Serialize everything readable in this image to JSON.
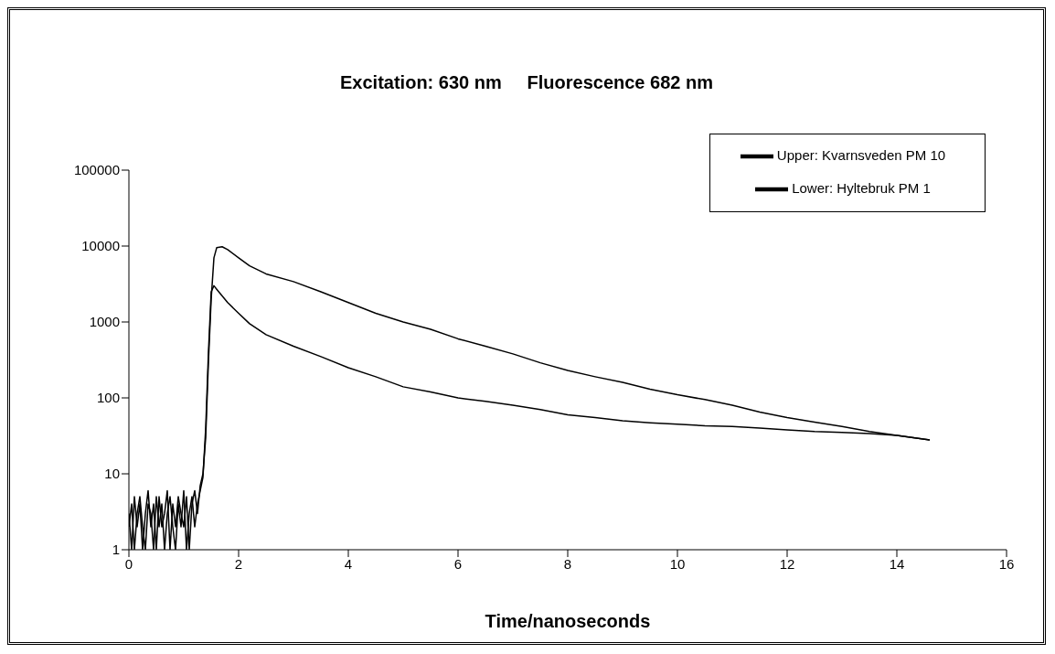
{
  "chart_data": {
    "type": "line",
    "title": "Excitation: 630 nm     Fluorescence 682 nm",
    "xlabel": "Time/nanoseconds",
    "xlim": [
      0,
      16
    ],
    "xticks": [
      0,
      2,
      4,
      6,
      8,
      10,
      12,
      14,
      16
    ],
    "ylim": [
      1,
      100000
    ],
    "yticks": [
      1,
      10,
      100,
      1000,
      10000,
      100000
    ],
    "log": "y",
    "grid": false,
    "legend": "top right",
    "marker": "none",
    "line_style": "solid",
    "series": [
      {
        "name": "Upper: Kvarnsveden PM 10",
        "color": "#000000",
        "x": [
          0,
          0.05,
          0.1,
          0.15,
          0.2,
          0.25,
          0.3,
          0.35,
          0.4,
          0.45,
          0.5,
          0.55,
          0.6,
          0.65,
          0.7,
          0.75,
          0.8,
          0.85,
          0.9,
          0.95,
          1,
          1.05,
          1.1,
          1.15,
          1.2,
          1.25,
          1.3,
          1.35,
          1.4,
          1.45,
          1.5,
          1.55,
          1.6,
          1.7,
          1.8,
          2,
          2.2,
          2.5,
          3,
          3.5,
          4,
          4.5,
          5,
          5.5,
          6,
          6.5,
          7,
          7.5,
          8,
          8.5,
          9,
          9.5,
          10,
          10.5,
          11,
          11.5,
          12,
          12.5,
          13,
          13.5,
          14,
          14.3,
          14.6
        ],
        "values": [
          3,
          1,
          5,
          2,
          4,
          1,
          3,
          6,
          2,
          4,
          1,
          5,
          2,
          3,
          6,
          1,
          4,
          2,
          5,
          3,
          2,
          5,
          1,
          4,
          6,
          3,
          7,
          10,
          30,
          300,
          2000,
          7000,
          9500,
          9800,
          9000,
          7000,
          5500,
          4300,
          3400,
          2500,
          1800,
          1300,
          1000,
          800,
          600,
          480,
          380,
          290,
          230,
          190,
          160,
          130,
          110,
          95,
          80,
          65,
          55,
          48,
          42,
          36,
          32,
          30,
          28
        ]
      },
      {
        "name": "Lower: Hyltebruk PM 1",
        "color": "#000000",
        "x": [
          0,
          0.05,
          0.1,
          0.15,
          0.2,
          0.25,
          0.3,
          0.35,
          0.4,
          0.45,
          0.5,
          0.55,
          0.6,
          0.65,
          0.7,
          0.75,
          0.8,
          0.85,
          0.9,
          0.95,
          1,
          1.05,
          1.1,
          1.15,
          1.2,
          1.25,
          1.3,
          1.35,
          1.4,
          1.45,
          1.5,
          1.55,
          1.6,
          1.8,
          2,
          2.2,
          2.5,
          3,
          3.5,
          4,
          4.5,
          5,
          5.5,
          6,
          6.5,
          7,
          7.5,
          8,
          8.5,
          9,
          9.5,
          10,
          10.5,
          11,
          11.5,
          12,
          12.5,
          13,
          13.5,
          14,
          14.3,
          14.6
        ],
        "values": [
          2,
          4,
          1,
          3,
          5,
          2,
          1,
          4,
          3,
          1,
          5,
          2,
          4,
          1,
          3,
          5,
          2,
          1,
          4,
          2,
          6,
          1,
          3,
          5,
          2,
          4,
          6,
          9,
          40,
          400,
          2500,
          3000,
          2700,
          1800,
          1300,
          950,
          680,
          480,
          350,
          250,
          190,
          140,
          120,
          100,
          90,
          80,
          70,
          60,
          55,
          50,
          47,
          45,
          43,
          42,
          40,
          38,
          36,
          35,
          34,
          32,
          30,
          28
        ]
      }
    ]
  }
}
